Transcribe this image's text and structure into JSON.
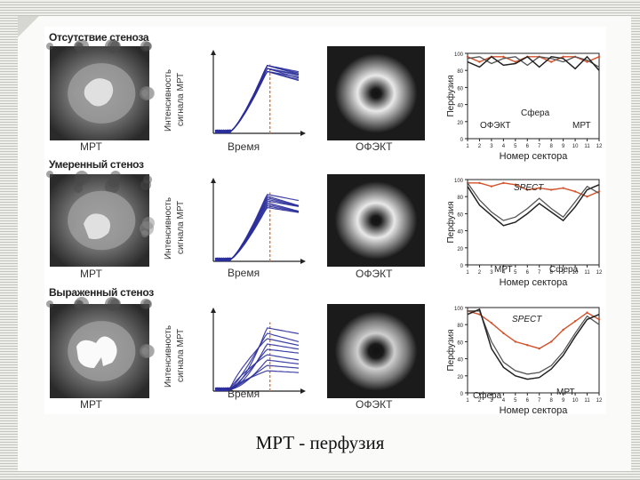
{
  "caption": "МРТ - перфузия",
  "rows": [
    {
      "heading": "Отсутствие стеноза",
      "mri": "МРТ",
      "ylab1": "Интенсивность",
      "ylab2": "сигнала МРТ",
      "xlab": "Время",
      "spect": "ОФЭКТ",
      "plot_y": "Перфузия",
      "plot_x": "Номер сектора",
      "legend": [
        "ОФЭКТ",
        "Сфера",
        "МРТ"
      ]
    },
    {
      "heading": "Умеренный стеноз",
      "mri": "МРТ",
      "ylab1": "Интенсивность",
      "ylab2": "сигнала МРТ",
      "xlab": "Время",
      "spect": "ОФЭКТ",
      "plot_y": "Перфузия",
      "plot_x": "Номер сектора",
      "legend": [
        "SPECT",
        "МРТ",
        "Сфера"
      ]
    },
    {
      "heading": "Выраженный стеноз",
      "mri": "МРТ",
      "ylab1": "Интенсивность",
      "ylab2": "сигнала МРТ",
      "xlab": "Время",
      "spect": "ОФЭКТ",
      "plot_y": "Перфузия",
      "plot_x": "Номер сектора",
      "legend": [
        "SPECT",
        "Сфера",
        "МРТ"
      ]
    }
  ],
  "colors": {
    "curves": "#2b2f9a",
    "spect": "#d2532b",
    "mri_line": "#222222",
    "sphere_line": "#555555",
    "marker": "#e07a3a"
  },
  "chart_data": [
    {
      "type": "line",
      "title": "Отсутствие стеноза",
      "xlabel": "Номер сектора",
      "ylabel": "Перфузия",
      "ylim": [
        0,
        100
      ],
      "x": [
        1,
        2,
        3,
        4,
        5,
        6,
        7,
        8,
        9,
        10,
        11,
        12
      ],
      "series": [
        {
          "name": "ОФЭКТ",
          "values": [
            96,
            90,
            96,
            96,
            90,
            96,
            96,
            90,
            96,
            96,
            90,
            96
          ]
        },
        {
          "name": "Сфера",
          "values": [
            94,
            96,
            88,
            94,
            96,
            86,
            96,
            94,
            90,
            96,
            92,
            84
          ]
        },
        {
          "name": "МРТ",
          "values": [
            90,
            84,
            96,
            86,
            88,
            96,
            84,
            96,
            94,
            82,
            96,
            80
          ]
        }
      ]
    },
    {
      "type": "line",
      "title": "Умеренный стеноз",
      "xlabel": "Номер сектора",
      "ylabel": "Перфузия",
      "ylim": [
        0,
        100
      ],
      "x": [
        1,
        2,
        3,
        4,
        5,
        6,
        7,
        8,
        9,
        10,
        11,
        12
      ],
      "series": [
        {
          "name": "SPECT",
          "values": [
            96,
            96,
            92,
            96,
            94,
            88,
            90,
            88,
            90,
            86,
            80,
            86
          ]
        },
        {
          "name": "МРТ",
          "values": [
            92,
            70,
            58,
            46,
            50,
            60,
            72,
            62,
            52,
            68,
            88,
            94
          ]
        },
        {
          "name": "Сфера",
          "values": [
            96,
            76,
            62,
            52,
            56,
            66,
            78,
            66,
            56,
            74,
            92,
            84
          ]
        }
      ]
    },
    {
      "type": "line",
      "title": "Выраженный стеноз",
      "xlabel": "Номер сектора",
      "ylabel": "Перфузия",
      "ylim": [
        0,
        100
      ],
      "x": [
        1,
        2,
        3,
        4,
        5,
        6,
        7,
        8,
        9,
        10,
        11,
        12
      ],
      "series": [
        {
          "name": "SPECT",
          "values": [
            96,
            92,
            82,
            70,
            60,
            56,
            52,
            60,
            74,
            84,
            94,
            86
          ]
        },
        {
          "name": "Сфера",
          "values": [
            96,
            96,
            60,
            36,
            26,
            22,
            24,
            32,
            48,
            70,
            90,
            80
          ]
        },
        {
          "name": "МРТ",
          "values": [
            92,
            98,
            52,
            30,
            20,
            16,
            18,
            28,
            44,
            66,
            86,
            92
          ]
        }
      ]
    }
  ]
}
